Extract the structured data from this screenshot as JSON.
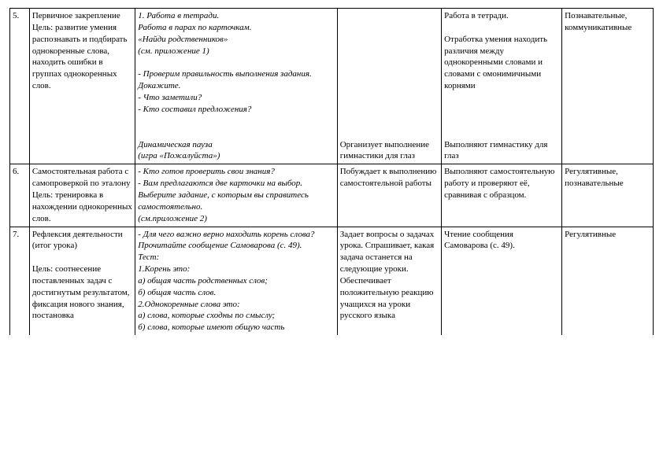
{
  "rows": [
    {
      "num": "5.",
      "c1": "Первичное закрепление\nЦель: развитие умения распознавать и подбирать однокоренные слова, находить ошибки в группах однокоренных слов.",
      "c2_a": "1. Работа в тетради.\nРабота в парах по карточкам.\n«Найди родственников»\n(см. приложение 1)\n\n- Проверим правильность выполнения задания. Докажите.\n- Что заметили?\n- Кто составил предложения?",
      "c2_b": "Динамическая пауза\n(игра «Пожалуйста»)",
      "c3": "Организует выполнение гимнастики для глаз",
      "c4_a": "Работа в тетради.\n\nОтработка умения находить различия между однокоренными словами и словами с омонимичными корнями",
      "c4_b": "Выполняют гимнастику для глаз",
      "c5": "Познавательные,\nкоммуникативные"
    },
    {
      "num": "6.",
      "c1": "Самостоятельная работа с самопроверкой по эталону\nЦель: тренировка в нахождении однокоренных слов.",
      "c2": "- Кто готов проверить свои знания?\n- Вам предлагаются две карточки на выбор. Выберите задание, с которым вы справитесь самостоятельно.\n(см.приложение 2)",
      "c3": "Побуждает к выполнению самостоятельной работы",
      "c4": "Выполняют самостоятельную работу и проверяют её, сравнивая с образцом.",
      "c5": "Регулятивные, познавательные"
    },
    {
      "num": "7.",
      "c1": "Рефлексия деятельности (итог урока)\n\nЦель: соотнесение поставленных задач с достигнутым результатом, фиксация нового знания, постановка",
      "c2_a_it": "- Для чего важно верно находить корень слова? Прочитайте сообщение Самоварова (с. 49).",
      "c2_b": "Тест:\n1.Корень это:\nа) общая часть родственных слов;\nб) общая часть слов.\n2.Однокоренные слова это:\nа) слова, которые сходны по смыслу;\nб) слова, которые имеют общую часть",
      "c3": "Задает вопросы о задачах урока. Спрашивает, какая задача останется на следующие уроки. Обеспечивает положительную реакцию учащихся на уроки русского языка",
      "c4": "Чтение сообщения Самоварова (с. 49).",
      "c5": "Регулятивные"
    }
  ]
}
